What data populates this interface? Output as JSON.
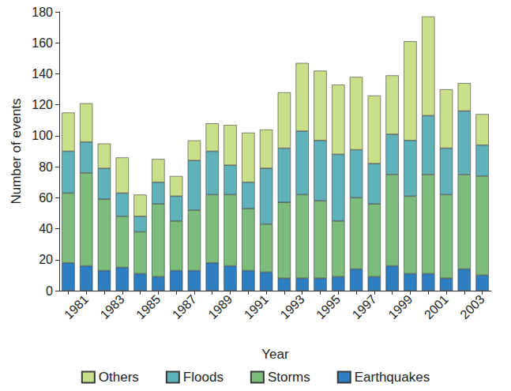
{
  "chart_data": {
    "type": "bar",
    "stacked": true,
    "x_label": "Year",
    "y_label": "Number of events",
    "categories": [
      null,
      "1981",
      null,
      "1983",
      null,
      "1985",
      null,
      "1987",
      null,
      "1989",
      null,
      "1991",
      null,
      "1993",
      null,
      "1995",
      null,
      "1997",
      null,
      "1999",
      null,
      "2001",
      null,
      "2003"
    ],
    "series": [
      {
        "name": "Others",
        "color": "#c9df8a",
        "values": [
          25,
          25,
          16,
          23,
          14,
          15,
          13,
          13,
          18,
          26,
          32,
          25,
          36,
          44,
          45,
          45,
          47,
          44,
          38,
          64,
          64,
          38,
          18,
          20
        ]
      },
      {
        "name": "Floods",
        "color": "#5fb2b9",
        "values": [
          27,
          20,
          20,
          15,
          10,
          14,
          16,
          32,
          28,
          19,
          17,
          36,
          35,
          41,
          39,
          43,
          31,
          26,
          26,
          36,
          38,
          30,
          41,
          20
        ]
      },
      {
        "name": "Storms",
        "color": "#7dbd7b",
        "values": [
          45,
          60,
          46,
          33,
          27,
          47,
          32,
          39,
          44,
          46,
          40,
          31,
          49,
          54,
          50,
          36,
          46,
          47,
          59,
          50,
          64,
          54,
          61,
          64
        ]
      },
      {
        "name": "Earthquakes",
        "color": "#2e7fc1",
        "values": [
          18,
          16,
          13,
          15,
          11,
          9,
          13,
          13,
          18,
          16,
          13,
          12,
          8,
          8,
          8,
          9,
          14,
          9,
          16,
          11,
          11,
          8,
          14,
          10
        ]
      }
    ],
    "ylim": [
      0,
      180
    ],
    "yticks": [
      0,
      20,
      40,
      60,
      80,
      100,
      120,
      140,
      160,
      180
    ],
    "grid": false,
    "legend": "bottom"
  }
}
